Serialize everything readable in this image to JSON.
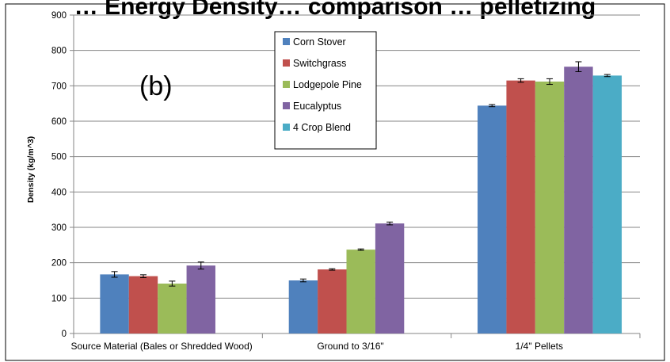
{
  "chart_data": {
    "type": "bar",
    "title": "… Energy Density… comparison … pelletizing",
    "panel_label": "(b)",
    "ylabel": "Density (kg/m^3)",
    "xlabel": "",
    "ylim": [
      0,
      900
    ],
    "yticks": [
      0,
      100,
      200,
      300,
      400,
      500,
      600,
      700,
      800,
      900
    ],
    "grid": true,
    "legend_position": "top-center",
    "categories": [
      "Source Material (Bales or Shredded Wood)",
      "Ground to 3/16\"",
      "1/4\" Pellets"
    ],
    "series": [
      {
        "name": "Corn Stover",
        "color": "#4F81BD",
        "values": [
          167,
          150,
          644
        ],
        "errors": [
          8,
          4,
          3
        ]
      },
      {
        "name": "Switchgrass",
        "color": "#C0504D",
        "values": [
          162,
          181,
          715
        ],
        "errors": [
          4,
          2,
          5
        ]
      },
      {
        "name": "Lodgepole Pine",
        "color": "#9BBB59",
        "values": [
          141,
          237,
          712
        ],
        "errors": [
          7,
          2,
          8
        ]
      },
      {
        "name": "Eucalyptus",
        "color": "#8064A2",
        "values": [
          192,
          311,
          754
        ],
        "errors": [
          10,
          4,
          14
        ]
      },
      {
        "name": "4 Crop Blend",
        "color": "#4BACC6",
        "values": [
          null,
          null,
          729
        ],
        "errors": [
          null,
          null,
          3
        ]
      }
    ]
  }
}
